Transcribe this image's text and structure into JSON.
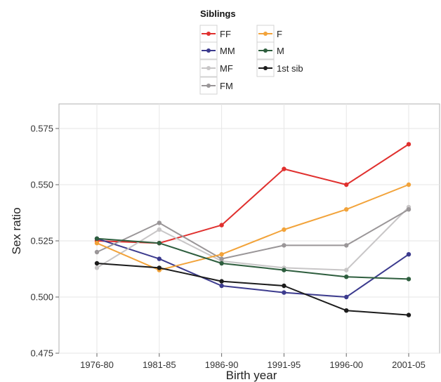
{
  "chart_data": {
    "type": "line",
    "title": "",
    "xlabel": "Birth year",
    "ylabel": "Sex ratio",
    "categories": [
      "1976-80",
      "1981-85",
      "1986-90",
      "1991-95",
      "1996-00",
      "2001-05"
    ],
    "ylim": [
      0.475,
      0.585
    ],
    "yticks": [
      "0.475",
      "0.500",
      "0.525",
      "0.550",
      "0.575"
    ],
    "grid": true,
    "legend": {
      "title": "Siblings",
      "placement": "top"
    },
    "series": [
      {
        "name": "FF",
        "color": "#e0302e",
        "values": [
          0.525,
          0.524,
          0.532,
          0.557,
          0.55,
          0.568
        ]
      },
      {
        "name": "MM",
        "color": "#3c3b8e",
        "values": [
          0.526,
          0.517,
          0.505,
          0.502,
          0.5,
          0.519
        ]
      },
      {
        "name": "MF",
        "color": "#c8c6c7",
        "values": [
          0.513,
          0.53,
          0.516,
          0.513,
          0.512,
          0.54
        ]
      },
      {
        "name": "FM",
        "color": "#9a9698",
        "values": [
          0.52,
          0.533,
          0.517,
          0.523,
          0.523,
          0.539
        ]
      },
      {
        "name": "F",
        "color": "#f2a33a",
        "values": [
          0.524,
          0.512,
          0.519,
          0.53,
          0.539,
          0.55
        ]
      },
      {
        "name": "M",
        "color": "#2e5e3e",
        "values": [
          0.526,
          0.524,
          0.515,
          0.512,
          0.509,
          0.508
        ]
      },
      {
        "name": "1st sib",
        "color": "#1c1c1c",
        "values": [
          0.515,
          0.513,
          0.507,
          0.505,
          0.494,
          0.492
        ]
      }
    ]
  }
}
